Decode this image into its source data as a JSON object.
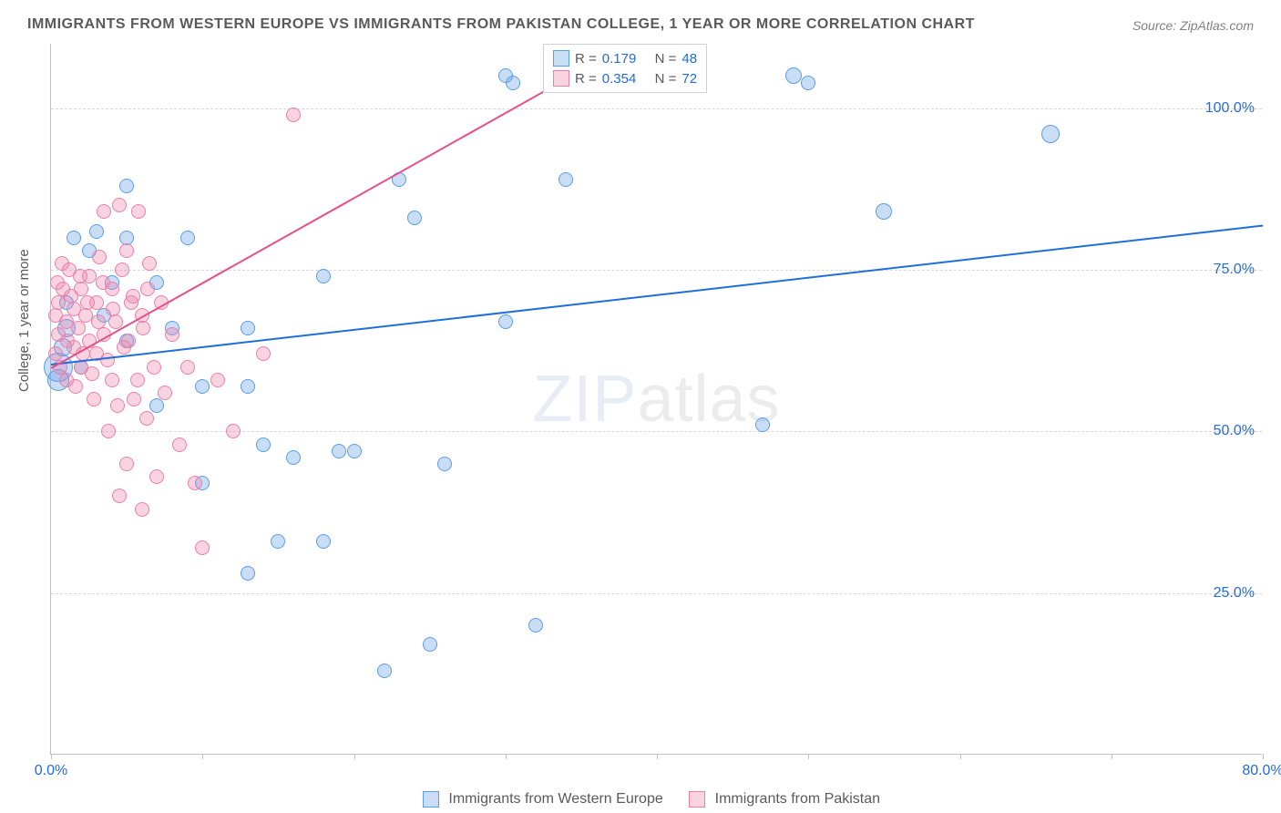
{
  "title": "IMMIGRANTS FROM WESTERN EUROPE VS IMMIGRANTS FROM PAKISTAN COLLEGE, 1 YEAR OR MORE CORRELATION CHART",
  "source": "Source: ZipAtlas.com",
  "watermark_a": "ZIP",
  "watermark_b": "atlas",
  "chart": {
    "type": "scatter",
    "ylabel": "College, 1 year or more",
    "xlim": [
      0,
      80
    ],
    "ylim": [
      0,
      110
    ],
    "yticks": [
      25,
      50,
      75,
      100
    ],
    "ytick_labels": [
      "25.0%",
      "50.0%",
      "75.0%",
      "100.0%"
    ],
    "xtick_positions": [
      0,
      10,
      20,
      30,
      40,
      50,
      60,
      70,
      80
    ],
    "xtick_labels_shown": {
      "0": "0.0%",
      "80": "80.0%"
    },
    "background_color": "#ffffff",
    "grid_color": "#d8d8d8",
    "axis_color": "#c0c0c0",
    "tick_label_color": "#206ae0",
    "series": [
      {
        "name": "Immigrants from Western Europe",
        "color_fill": "rgba(100,160,230,0.35)",
        "color_stroke": "#5a9de8",
        "trend_color": "#1e6fd9",
        "marker_radius": 8,
        "R": "0.179",
        "N": "48",
        "trend": {
          "x0": 0,
          "y0": 60.5,
          "x1": 80,
          "y1": 82
        },
        "points": [
          {
            "x": 0.5,
            "y": 60,
            "r": 16
          },
          {
            "x": 0.5,
            "y": 58,
            "r": 12
          },
          {
            "x": 1,
            "y": 66,
            "r": 10
          },
          {
            "x": 1.5,
            "y": 80,
            "r": 8
          },
          {
            "x": 3,
            "y": 81,
            "r": 8
          },
          {
            "x": 4,
            "y": 73,
            "r": 8
          },
          {
            "x": 5,
            "y": 64,
            "r": 8
          },
          {
            "x": 5,
            "y": 80,
            "r": 8
          },
          {
            "x": 5,
            "y": 88,
            "r": 8
          },
          {
            "x": 7,
            "y": 73,
            "r": 8
          },
          {
            "x": 7,
            "y": 54,
            "r": 8
          },
          {
            "x": 8,
            "y": 66,
            "r": 8
          },
          {
            "x": 9,
            "y": 80,
            "r": 8
          },
          {
            "x": 10,
            "y": 57,
            "r": 8
          },
          {
            "x": 10,
            "y": 42,
            "r": 8
          },
          {
            "x": 13,
            "y": 66,
            "r": 8
          },
          {
            "x": 13,
            "y": 57,
            "r": 8
          },
          {
            "x": 13,
            "y": 28,
            "r": 8
          },
          {
            "x": 14,
            "y": 48,
            "r": 8
          },
          {
            "x": 15,
            "y": 33,
            "r": 8
          },
          {
            "x": 16,
            "y": 46,
            "r": 8
          },
          {
            "x": 18,
            "y": 74,
            "r": 8
          },
          {
            "x": 18,
            "y": 33,
            "r": 8
          },
          {
            "x": 19,
            "y": 47,
            "r": 8
          },
          {
            "x": 20,
            "y": 47,
            "r": 8
          },
          {
            "x": 22,
            "y": 13,
            "r": 8
          },
          {
            "x": 23,
            "y": 89,
            "r": 8
          },
          {
            "x": 24,
            "y": 83,
            "r": 8
          },
          {
            "x": 25,
            "y": 17,
            "r": 8
          },
          {
            "x": 26,
            "y": 45,
            "r": 8
          },
          {
            "x": 30,
            "y": 105,
            "r": 8
          },
          {
            "x": 30.5,
            "y": 104,
            "r": 8
          },
          {
            "x": 30,
            "y": 67,
            "r": 8
          },
          {
            "x": 32,
            "y": 20,
            "r": 8
          },
          {
            "x": 33,
            "y": 105,
            "r": 8
          },
          {
            "x": 33.5,
            "y": 106,
            "r": 8
          },
          {
            "x": 34,
            "y": 89,
            "r": 8
          },
          {
            "x": 40,
            "y": 105,
            "r": 8
          },
          {
            "x": 47,
            "y": 51,
            "r": 8
          },
          {
            "x": 49,
            "y": 105,
            "r": 9
          },
          {
            "x": 50,
            "y": 104,
            "r": 8
          },
          {
            "x": 55,
            "y": 84,
            "r": 9
          },
          {
            "x": 66,
            "y": 96,
            "r": 10
          },
          {
            "x": 2.5,
            "y": 78,
            "r": 8
          },
          {
            "x": 3.5,
            "y": 68,
            "r": 8
          },
          {
            "x": 1,
            "y": 70,
            "r": 8
          },
          {
            "x": 2,
            "y": 60,
            "r": 8
          },
          {
            "x": 0.8,
            "y": 63,
            "r": 10
          }
        ]
      },
      {
        "name": "Immigrants from Pakistan",
        "color_fill": "rgba(240,130,170,0.35)",
        "color_stroke": "#ec7fa8",
        "trend_color": "#e84f8a",
        "marker_radius": 8,
        "R": "0.354",
        "N": "72",
        "trend": {
          "x0": 0,
          "y0": 60,
          "x1": 38,
          "y1": 110
        },
        "points": [
          {
            "x": 0.5,
            "y": 65,
            "r": 8
          },
          {
            "x": 0.5,
            "y": 70,
            "r": 8
          },
          {
            "x": 0.8,
            "y": 72,
            "r": 8
          },
          {
            "x": 1,
            "y": 58,
            "r": 8
          },
          {
            "x": 1,
            "y": 67,
            "r": 8
          },
          {
            "x": 1.2,
            "y": 75,
            "r": 8
          },
          {
            "x": 1.5,
            "y": 63,
            "r": 8
          },
          {
            "x": 1.5,
            "y": 69,
            "r": 8
          },
          {
            "x": 1.8,
            "y": 66,
            "r": 8
          },
          {
            "x": 2,
            "y": 72,
            "r": 8
          },
          {
            "x": 2,
            "y": 60,
            "r": 8
          },
          {
            "x": 2.3,
            "y": 68,
            "r": 8
          },
          {
            "x": 2.5,
            "y": 64,
            "r": 8
          },
          {
            "x": 2.5,
            "y": 74,
            "r": 8
          },
          {
            "x": 2.8,
            "y": 55,
            "r": 8
          },
          {
            "x": 3,
            "y": 70,
            "r": 8
          },
          {
            "x": 3,
            "y": 62,
            "r": 8
          },
          {
            "x": 3.2,
            "y": 77,
            "r": 8
          },
          {
            "x": 3.5,
            "y": 84,
            "r": 8
          },
          {
            "x": 3.5,
            "y": 65,
            "r": 8
          },
          {
            "x": 3.8,
            "y": 50,
            "r": 8
          },
          {
            "x": 4,
            "y": 72,
            "r": 8
          },
          {
            "x": 4,
            "y": 58,
            "r": 8
          },
          {
            "x": 4.3,
            "y": 67,
            "r": 8
          },
          {
            "x": 4.5,
            "y": 85,
            "r": 8
          },
          {
            "x": 4.5,
            "y": 40,
            "r": 8
          },
          {
            "x": 4.8,
            "y": 63,
            "r": 8
          },
          {
            "x": 5,
            "y": 78,
            "r": 8
          },
          {
            "x": 5,
            "y": 45,
            "r": 8
          },
          {
            "x": 5.3,
            "y": 70,
            "r": 8
          },
          {
            "x": 5.5,
            "y": 55,
            "r": 8
          },
          {
            "x": 5.8,
            "y": 84,
            "r": 8
          },
          {
            "x": 6,
            "y": 38,
            "r": 8
          },
          {
            "x": 6,
            "y": 68,
            "r": 8
          },
          {
            "x": 6.3,
            "y": 52,
            "r": 8
          },
          {
            "x": 6.5,
            "y": 76,
            "r": 8
          },
          {
            "x": 6.8,
            "y": 60,
            "r": 8
          },
          {
            "x": 7,
            "y": 43,
            "r": 8
          },
          {
            "x": 7.3,
            "y": 70,
            "r": 8
          },
          {
            "x": 7.5,
            "y": 56,
            "r": 8
          },
          {
            "x": 8,
            "y": 65,
            "r": 8
          },
          {
            "x": 8.5,
            "y": 48,
            "r": 8
          },
          {
            "x": 9,
            "y": 60,
            "r": 8
          },
          {
            "x": 9.5,
            "y": 42,
            "r": 8
          },
          {
            "x": 10,
            "y": 32,
            "r": 8
          },
          {
            "x": 11,
            "y": 58,
            "r": 8
          },
          {
            "x": 12,
            "y": 50,
            "r": 8
          },
          {
            "x": 14,
            "y": 62,
            "r": 8
          },
          {
            "x": 16,
            "y": 99,
            "r": 8
          },
          {
            "x": 0.3,
            "y": 68,
            "r": 8
          },
          {
            "x": 0.3,
            "y": 62,
            "r": 8
          },
          {
            "x": 0.4,
            "y": 73,
            "r": 8
          },
          {
            "x": 0.6,
            "y": 60,
            "r": 8
          },
          {
            "x": 0.7,
            "y": 76,
            "r": 8
          },
          {
            "x": 1.1,
            "y": 64,
            "r": 8
          },
          {
            "x": 1.3,
            "y": 71,
            "r": 8
          },
          {
            "x": 1.6,
            "y": 57,
            "r": 8
          },
          {
            "x": 1.9,
            "y": 74,
            "r": 8
          },
          {
            "x": 2.1,
            "y": 62,
            "r": 8
          },
          {
            "x": 2.4,
            "y": 70,
            "r": 8
          },
          {
            "x": 2.7,
            "y": 59,
            "r": 8
          },
          {
            "x": 3.1,
            "y": 67,
            "r": 8
          },
          {
            "x": 3.4,
            "y": 73,
            "r": 8
          },
          {
            "x": 3.7,
            "y": 61,
            "r": 8
          },
          {
            "x": 4.1,
            "y": 69,
            "r": 8
          },
          {
            "x": 4.4,
            "y": 54,
            "r": 8
          },
          {
            "x": 4.7,
            "y": 75,
            "r": 8
          },
          {
            "x": 5.1,
            "y": 64,
            "r": 8
          },
          {
            "x": 5.4,
            "y": 71,
            "r": 8
          },
          {
            "x": 5.7,
            "y": 58,
            "r": 8
          },
          {
            "x": 6.1,
            "y": 66,
            "r": 8
          },
          {
            "x": 6.4,
            "y": 72,
            "r": 8
          }
        ]
      }
    ]
  },
  "legend": {
    "r_label": "R =",
    "n_label": "N ="
  }
}
